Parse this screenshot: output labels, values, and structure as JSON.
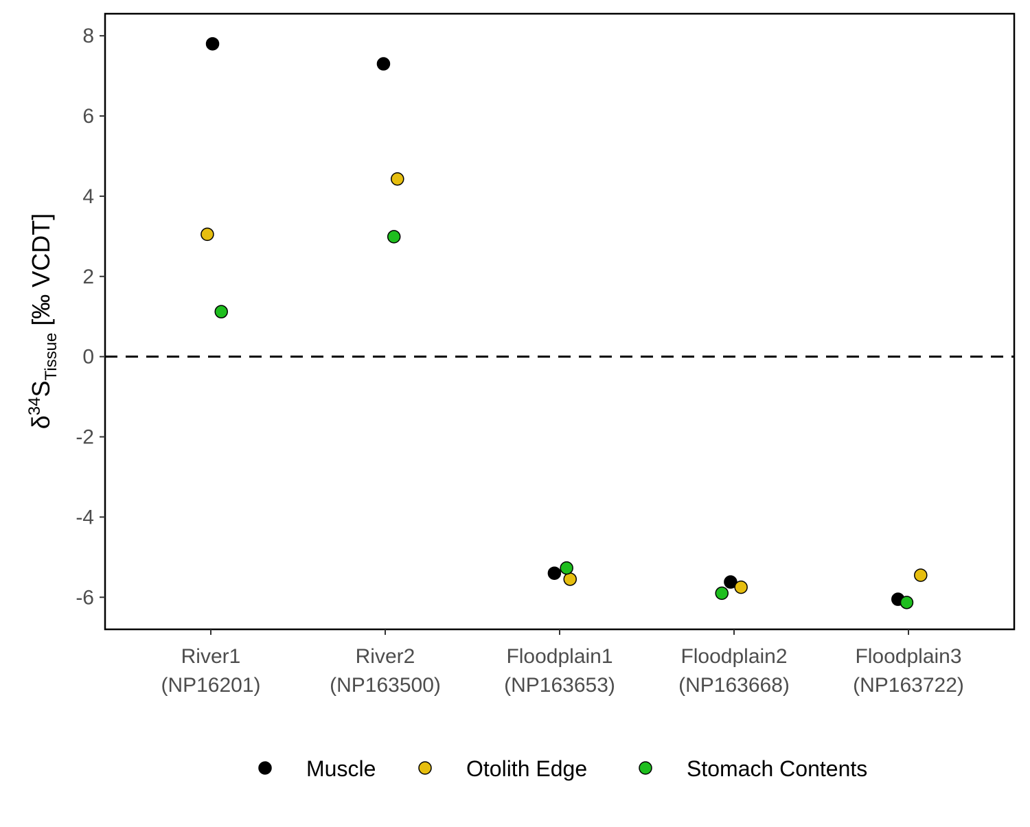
{
  "chart_data": {
    "type": "scatter",
    "categories": [
      {
        "line1": "River1",
        "line2": "(NP16201)"
      },
      {
        "line1": "River2",
        "line2": "(NP163500)"
      },
      {
        "line1": "Floodplain1",
        "line2": "(NP163653)"
      },
      {
        "line1": "Floodplain2",
        "line2": "(NP163668)"
      },
      {
        "line1": "Floodplain3",
        "line2": "(NP163722)"
      }
    ],
    "ylabel": {
      "base": "δ",
      "sup": "34",
      "main": "S",
      "sub": "Tissue",
      "tail": " [‰ VCDT]"
    },
    "ylim": [
      -6.8,
      8.55
    ],
    "yticks": [
      -6,
      -4,
      -2,
      0,
      2,
      4,
      6,
      8
    ],
    "ytick_labels": [
      "-6",
      "-4",
      "-2",
      "0",
      "2",
      "4",
      "6",
      "8"
    ],
    "reference_line": {
      "y": 0,
      "style": "dashed"
    },
    "grid": false,
    "legend_position": "bottom",
    "series": [
      {
        "name": "Muscle",
        "color": "#000000",
        "points": [
          {
            "category": 0,
            "jitter": 0.01,
            "y": 7.8
          },
          {
            "category": 1,
            "jitter": -0.01,
            "y": 7.3
          },
          {
            "category": 2,
            "jitter": -0.03,
            "y": -5.4
          },
          {
            "category": 3,
            "jitter": -0.02,
            "y": -5.62
          },
          {
            "category": 4,
            "jitter": -0.06,
            "y": -6.05
          }
        ]
      },
      {
        "name": "Otolith Edge",
        "color": "#E6BE0F",
        "points": [
          {
            "category": 0,
            "jitter": -0.02,
            "y": 3.05
          },
          {
            "category": 1,
            "jitter": 0.07,
            "y": 4.43
          },
          {
            "category": 2,
            "jitter": 0.06,
            "y": -5.55
          },
          {
            "category": 3,
            "jitter": 0.04,
            "y": -5.75
          },
          {
            "category": 4,
            "jitter": 0.07,
            "y": -5.45
          }
        ]
      },
      {
        "name": "Stomach Contents",
        "color": "#1EBE1E",
        "points": [
          {
            "category": 0,
            "jitter": 0.06,
            "y": 1.12
          },
          {
            "category": 1,
            "jitter": 0.05,
            "y": 2.99
          },
          {
            "category": 2,
            "jitter": 0.04,
            "y": -5.27
          },
          {
            "category": 3,
            "jitter": -0.07,
            "y": -5.9
          },
          {
            "category": 4,
            "jitter": -0.01,
            "y": -6.13
          }
        ]
      }
    ]
  }
}
